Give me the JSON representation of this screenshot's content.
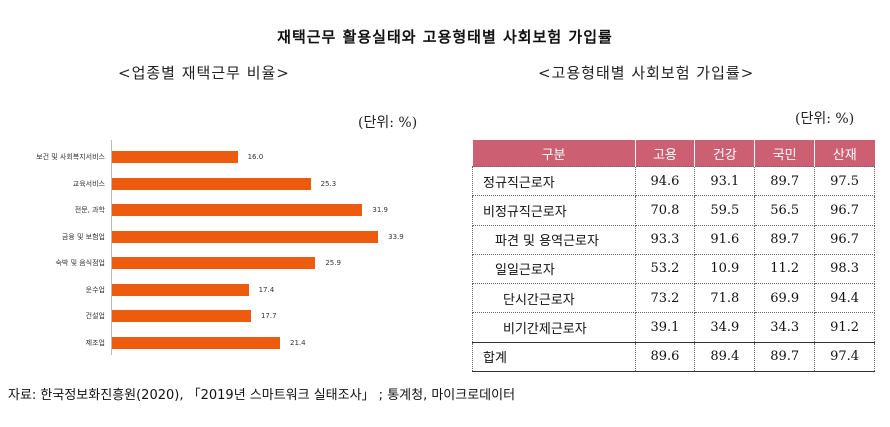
{
  "title": "재택근무 활용실태와 고용형태별 사회보험 가입률",
  "left_panel": {
    "subtitle": "<업종별 재택근무 비율>",
    "unit": "(단위: %)"
  },
  "right_panel": {
    "subtitle": "<고용형태별 사회보험 가입률>",
    "unit": "(단위: %)"
  },
  "chart_data": [
    {
      "type": "bar",
      "orientation": "horizontal",
      "title": "<업종별 재택근무 비율>",
      "unit": "%",
      "categories": [
        "보건 및 사회복지서비스",
        "교육서비스",
        "전문, 과학",
        "금융 및 보험업",
        "숙박 및 음식점업",
        "운수업",
        "건설업",
        "제조업"
      ],
      "values": [
        16.0,
        25.3,
        31.9,
        33.9,
        25.9,
        17.4,
        17.7,
        21.4
      ],
      "value_labels": [
        "16.0",
        "25.3",
        "31.9",
        "33.9",
        "25.9",
        "17.4",
        "17.7",
        "21.4"
      ],
      "xlim": [
        0,
        35
      ],
      "color": "#ed5b0e",
      "grid": false,
      "legend": "none"
    },
    {
      "type": "table",
      "title": "<고용형태별 사회보험 가입률>",
      "unit": "%",
      "columns": [
        "구분",
        "고용",
        "건강",
        "국민",
        "산재"
      ],
      "rows": [
        {
          "label": "정규직근로자",
          "values": [
            "94.6",
            "93.1",
            "89.7",
            "97.5"
          ]
        },
        {
          "label": "비정규직근로자",
          "values": [
            "70.8",
            "59.5",
            "56.5",
            "96.7"
          ]
        },
        {
          "label": "파견 및 용역근로자",
          "values": [
            "93.3",
            "91.6",
            "89.7",
            "96.7"
          ]
        },
        {
          "label": "일일근로자",
          "values": [
            "53.2",
            "10.9",
            "11.2",
            "98.3"
          ]
        },
        {
          "label": "단시간근로자",
          "values": [
            "73.2",
            "71.8",
            "69.9",
            "94.4"
          ]
        },
        {
          "label": "비기간제근로자",
          "values": [
            "39.1",
            "34.9",
            "34.3",
            "91.2"
          ]
        },
        {
          "label": "합계",
          "values": [
            "89.6",
            "89.4",
            "89.7",
            "97.4"
          ]
        }
      ],
      "header_color": "#cd5f72"
    }
  ],
  "source": "자료: 한국정보화진흥원(2020), 「2019년 스마트워크 실태조사」 ; 통계청, 마이크로데이터"
}
